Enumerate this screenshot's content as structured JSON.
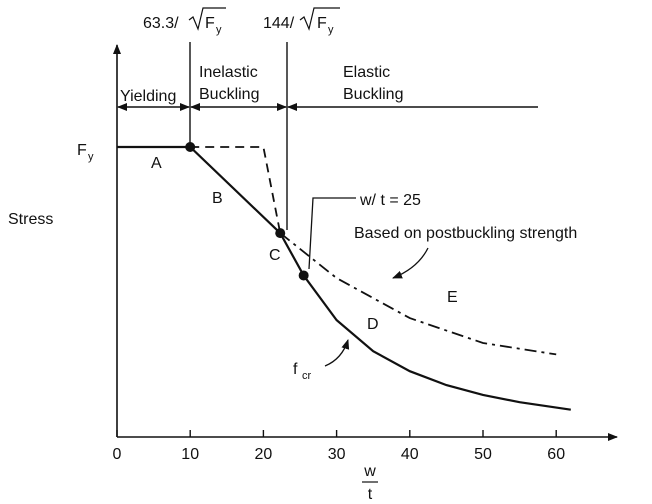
{
  "chart_data": {
    "type": "line",
    "xlabel_num": "w",
    "xlabel_den": "t",
    "ylabel": "Stress",
    "xlim": [
      0,
      63
    ],
    "x_ticks": [
      0,
      10,
      20,
      30,
      40,
      50,
      60
    ],
    "y_marker": {
      "base": "F",
      "subscript": "y"
    },
    "top_limits": [
      {
        "x": 10,
        "prefix": "63.3/",
        "base": "F",
        "subscript": "y"
      },
      {
        "x": 22.3,
        "prefix": "144/",
        "base": "F",
        "subscript": "y"
      }
    ],
    "regions": [
      {
        "name": "Yielding",
        "lines": [
          "Yielding"
        ]
      },
      {
        "name": "Inelastic Buckling",
        "lines": [
          "Inelastic",
          "Buckling"
        ]
      },
      {
        "name": "Elastic Buckling",
        "lines": [
          "Elastic",
          "Buckling"
        ]
      }
    ],
    "point_labels": [
      "A",
      "B",
      "C",
      "D",
      "E"
    ],
    "annotations": {
      "wt": "w/ t = 25",
      "postbuckling": "Based on postbuckling strength",
      "fcr_base": "f",
      "fcr_sub": "cr"
    },
    "series": [
      {
        "style": "solid",
        "x": [
          0,
          10,
          22.3,
          25.5,
          30,
          35,
          40,
          45,
          50,
          55,
          62
        ],
        "y": [
          1.0,
          1.0,
          0.703,
          0.557,
          0.403,
          0.296,
          0.227,
          0.179,
          0.145,
          0.12,
          0.094
        ]
      },
      {
        "style": "dashed",
        "x": [
          10,
          20,
          22.3
        ],
        "y": [
          1.0,
          1.0,
          0.703
        ]
      },
      {
        "style": "dashdot",
        "x": [
          22.3,
          30,
          40,
          50,
          60
        ],
        "y": [
          0.703,
          0.548,
          0.41,
          0.324,
          0.285
        ]
      }
    ],
    "key_points": [
      {
        "x": 10,
        "y": 1.0
      },
      {
        "x": 22.3,
        "y": 0.703
      },
      {
        "x": 25.5,
        "y": 0.557
      }
    ]
  }
}
